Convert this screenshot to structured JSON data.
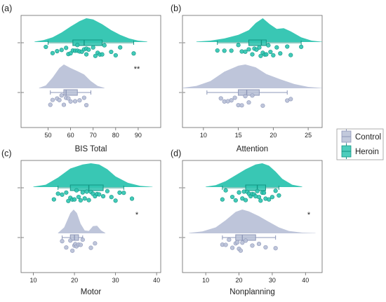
{
  "colors": {
    "control": "#b7bfd6",
    "control_dark": "#8e97b8",
    "heroin": "#2ec4b0",
    "heroin_dark": "#139583",
    "frame": "#666666"
  },
  "legend": {
    "entries": [
      {
        "name": "Control"
      },
      {
        "name": "Heroin"
      }
    ],
    "position": "right-middle"
  },
  "chart_data": [
    {
      "type": "raincloud",
      "panel_label": "(a)",
      "xlabel": "BIS Total",
      "xlim": [
        38,
        100
      ],
      "xticks": [
        "50",
        "60",
        "70",
        "80",
        "90"
      ],
      "significance": "**",
      "groups": {
        "heroin": {
          "box": {
            "whisker_low": 50,
            "q1": 61,
            "median": 66,
            "q3": 74,
            "whisker_high": 88
          },
          "points": [
            49,
            52,
            54,
            56,
            58,
            59,
            60,
            61,
            62,
            63,
            63,
            64,
            65,
            66,
            67,
            67,
            68,
            70,
            71,
            72,
            73,
            74,
            75,
            78,
            80,
            82,
            88
          ],
          "density": [
            [
              44,
              0.02
            ],
            [
              48,
              0.08
            ],
            [
              52,
              0.2
            ],
            [
              56,
              0.4
            ],
            [
              60,
              0.65
            ],
            [
              64,
              0.88
            ],
            [
              67,
              1.0
            ],
            [
              70,
              0.95
            ],
            [
              74,
              0.75
            ],
            [
              78,
              0.5
            ],
            [
              82,
              0.3
            ],
            [
              86,
              0.15
            ],
            [
              90,
              0.06
            ],
            [
              94,
              0.02
            ]
          ]
        },
        "control": {
          "box": {
            "whisker_low": 51,
            "q1": 57,
            "median": 58,
            "q3": 63,
            "whisker_high": 69
          },
          "points": [
            51,
            52,
            54,
            55,
            56,
            57,
            58,
            59,
            60,
            62,
            64,
            66,
            67
          ],
          "density": [
            [
              46,
              0.02
            ],
            [
              49,
              0.12
            ],
            [
              52,
              0.45
            ],
            [
              55,
              0.85
            ],
            [
              57,
              1.0
            ],
            [
              60,
              0.85
            ],
            [
              63,
              0.72
            ],
            [
              66,
              0.58
            ],
            [
              69,
              0.3
            ],
            [
              72,
              0.1
            ],
            [
              75,
              0.02
            ]
          ]
        }
      }
    },
    {
      "type": "raincloud",
      "panel_label": "(b)",
      "xlabel": "Attention",
      "xlim": [
        7,
        27
      ],
      "xticks": [
        "10",
        "15",
        "20",
        "25"
      ],
      "significance": "",
      "groups": {
        "heroin": {
          "box": {
            "whisker_low": 12,
            "q1": 16.5,
            "median": 18.3,
            "q3": 19,
            "whisker_high": 24
          },
          "points": [
            12,
            13,
            14,
            15,
            15.5,
            16,
            16.5,
            17,
            17.3,
            17.6,
            18,
            18.2,
            18.5,
            18.8,
            19,
            19.3,
            19.6,
            20,
            20.5,
            21,
            22,
            22.5,
            24
          ],
          "density": [
            [
              9,
              0.02
            ],
            [
              11,
              0.06
            ],
            [
              13,
              0.15
            ],
            [
              15,
              0.3
            ],
            [
              16.5,
              0.5
            ],
            [
              17.5,
              0.8
            ],
            [
              18.5,
              1.0
            ],
            [
              19.5,
              0.75
            ],
            [
              20.5,
              0.55
            ],
            [
              21.5,
              0.58
            ],
            [
              22.5,
              0.45
            ],
            [
              24,
              0.2
            ],
            [
              25.5,
              0.06
            ],
            [
              27,
              0.01
            ]
          ]
        },
        "control": {
          "box": {
            "whisker_low": 10.5,
            "q1": 15,
            "median": 16.2,
            "q3": 18,
            "whisker_high": 22
          },
          "points": [
            12.5,
            13,
            13.5,
            14,
            14.5,
            15,
            15.5,
            16,
            16.5,
            17,
            18.5,
            22,
            22.5
          ],
          "density": [
            [
              7,
              0.02
            ],
            [
              9,
              0.1
            ],
            [
              11,
              0.3
            ],
            [
              13,
              0.7
            ],
            [
              15,
              0.95
            ],
            [
              16,
              1.0
            ],
            [
              17.5,
              0.88
            ],
            [
              19,
              0.6
            ],
            [
              21,
              0.38
            ],
            [
              23,
              0.18
            ],
            [
              25,
              0.06
            ],
            [
              27,
              0.01
            ]
          ]
        }
      }
    },
    {
      "type": "raincloud",
      "panel_label": "(c)",
      "xlabel": "Motor",
      "xlim": [
        7,
        41
      ],
      "xticks": [
        "10",
        "20",
        "30",
        "40"
      ],
      "significance": "*",
      "groups": {
        "heroin": {
          "box": {
            "whisker_low": 16,
            "q1": 19,
            "median": 23.5,
            "q3": 27,
            "whisker_high": 32
          },
          "points": [
            15,
            16,
            17,
            18,
            18.5,
            19,
            19.5,
            20,
            20.5,
            21,
            21.5,
            22,
            22.5,
            23,
            23.5,
            24,
            24.5,
            25,
            25.5,
            26,
            27,
            28,
            29,
            30,
            31,
            32,
            34
          ],
          "density": [
            [
              10,
              0.02
            ],
            [
              13,
              0.1
            ],
            [
              16,
              0.4
            ],
            [
              19,
              0.78
            ],
            [
              22,
              0.95
            ],
            [
              24,
              1.0
            ],
            [
              26,
              0.95
            ],
            [
              28,
              0.75
            ],
            [
              30,
              0.45
            ],
            [
              33,
              0.18
            ],
            [
              36,
              0.05
            ],
            [
              39,
              0.01
            ]
          ]
        },
        "control": {
          "box": {
            "whisker_low": 17,
            "q1": 19,
            "median": 20,
            "q3": 21,
            "whisker_high": 22
          },
          "points": [
            17,
            18,
            19,
            19.5,
            20,
            20.2,
            20.5,
            21,
            21.5,
            22,
            24,
            25
          ],
          "density": [
            [
              16,
              0.02
            ],
            [
              17.5,
              0.25
            ],
            [
              19,
              0.85
            ],
            [
              19.8,
              1.0
            ],
            [
              20.6,
              0.85
            ],
            [
              21.5,
              0.4
            ],
            [
              22.5,
              0.12
            ],
            [
              23.5,
              0.1
            ],
            [
              24.5,
              0.3
            ],
            [
              25.5,
              0.32
            ],
            [
              26.5,
              0.12
            ],
            [
              27.5,
              0.02
            ]
          ]
        }
      }
    },
    {
      "type": "raincloud",
      "panel_label": "(d)",
      "xlabel": "Nonplanning",
      "xlim": [
        3,
        45
      ],
      "xticks": [
        "10",
        "20",
        "30",
        "40"
      ],
      "significance": "*",
      "groups": {
        "heroin": {
          "box": {
            "whisker_low": 15,
            "q1": 22,
            "median": 25.5,
            "q3": 28,
            "whisker_high": 32
          },
          "points": [
            15,
            16,
            18,
            19,
            20,
            21,
            21.5,
            22,
            22.5,
            23,
            23.5,
            24,
            24.5,
            25,
            25.5,
            26,
            26.5,
            27,
            27.5,
            28,
            29,
            30,
            31,
            32
          ],
          "density": [
            [
              10,
              0.02
            ],
            [
              13,
              0.08
            ],
            [
              16,
              0.25
            ],
            [
              19,
              0.5
            ],
            [
              22,
              0.75
            ],
            [
              25,
              0.95
            ],
            [
              27,
              1.0
            ],
            [
              29,
              0.9
            ],
            [
              31,
              0.65
            ],
            [
              33,
              0.35
            ],
            [
              36,
              0.1
            ],
            [
              39,
              0.02
            ]
          ]
        },
        "control": {
          "box": {
            "whisker_low": 15,
            "q1": 19,
            "median": 21,
            "q3": 25,
            "whisker_high": 31
          },
          "points": [
            15,
            16,
            17,
            18,
            19,
            19.5,
            20,
            20.5,
            21,
            22,
            24,
            26,
            28,
            31
          ],
          "density": [
            [
              5,
              0.02
            ],
            [
              9,
              0.08
            ],
            [
              13,
              0.25
            ],
            [
              16,
              0.55
            ],
            [
              19,
              0.9
            ],
            [
              21,
              1.0
            ],
            [
              23,
              0.92
            ],
            [
              26,
              0.72
            ],
            [
              29,
              0.48
            ],
            [
              32,
              0.25
            ],
            [
              35,
              0.1
            ],
            [
              39,
              0.03
            ],
            [
              43,
              0.01
            ]
          ]
        }
      }
    }
  ]
}
